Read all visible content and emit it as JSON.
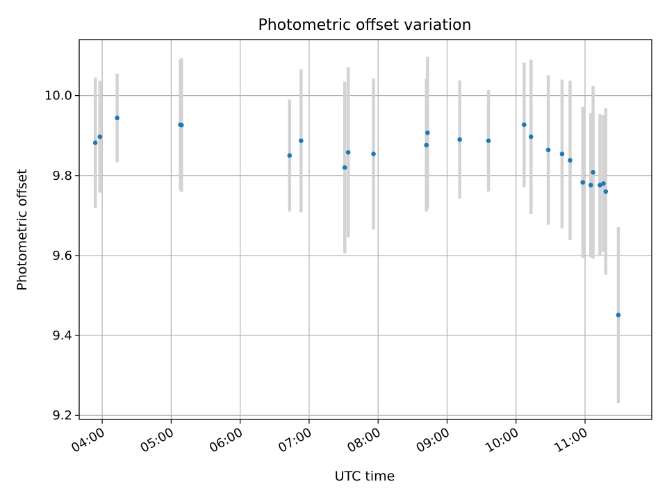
{
  "chart_data": {
    "type": "scatter",
    "title": "Photometric offset variation",
    "xlabel": "UTC time",
    "ylabel": "Photometric offset",
    "x_ticks": [
      "04:00",
      "05:00",
      "06:00",
      "07:00",
      "08:00",
      "09:00",
      "10:00",
      "11:00"
    ],
    "y_ticks": [
      "9.2",
      "9.4",
      "9.6",
      "9.8",
      "10.0"
    ],
    "xlim": [
      "03:40",
      "11:58"
    ],
    "ylim": [
      9.19,
      10.14
    ],
    "grid": true,
    "colors": {
      "point": "#1f77b4",
      "errorbar": "#d3d3d3",
      "grid": "#b0b0b0"
    },
    "points": [
      {
        "x": "03:54",
        "y": 9.882,
        "err": 0.163
      },
      {
        "x": "03:58",
        "y": 9.897,
        "err": 0.14
      },
      {
        "x": "04:13",
        "y": 9.944,
        "err": 0.111
      },
      {
        "x": "05:08",
        "y": 9.927,
        "err": 0.163
      },
      {
        "x": "05:09",
        "y": 9.926,
        "err": 0.167
      },
      {
        "x": "06:43",
        "y": 9.85,
        "err": 0.14
      },
      {
        "x": "06:53",
        "y": 9.887,
        "err": 0.179
      },
      {
        "x": "07:31",
        "y": 9.82,
        "err": 0.215
      },
      {
        "x": "07:34",
        "y": 9.858,
        "err": 0.213
      },
      {
        "x": "07:56",
        "y": 9.854,
        "err": 0.189
      },
      {
        "x": "08:42",
        "y": 9.876,
        "err": 0.166
      },
      {
        "x": "08:43",
        "y": 9.907,
        "err": 0.19
      },
      {
        "x": "09:11",
        "y": 9.89,
        "err": 0.148
      },
      {
        "x": "09:36",
        "y": 9.887,
        "err": 0.127
      },
      {
        "x": "10:07",
        "y": 9.927,
        "err": 0.156
      },
      {
        "x": "10:13",
        "y": 9.897,
        "err": 0.193
      },
      {
        "x": "10:28",
        "y": 9.864,
        "err": 0.187
      },
      {
        "x": "10:40",
        "y": 9.854,
        "err": 0.186
      },
      {
        "x": "10:47",
        "y": 9.838,
        "err": 0.199
      },
      {
        "x": "10:58",
        "y": 9.783,
        "err": 0.189
      },
      {
        "x": "11:05",
        "y": 9.776,
        "err": 0.18
      },
      {
        "x": "11:07",
        "y": 9.808,
        "err": 0.216
      },
      {
        "x": "11:13",
        "y": 9.776,
        "err": 0.178
      },
      {
        "x": "11:16",
        "y": 9.78,
        "err": 0.171
      },
      {
        "x": "11:18",
        "y": 9.76,
        "err": 0.208
      },
      {
        "x": "11:29",
        "y": 9.451,
        "err": 0.22
      }
    ]
  }
}
